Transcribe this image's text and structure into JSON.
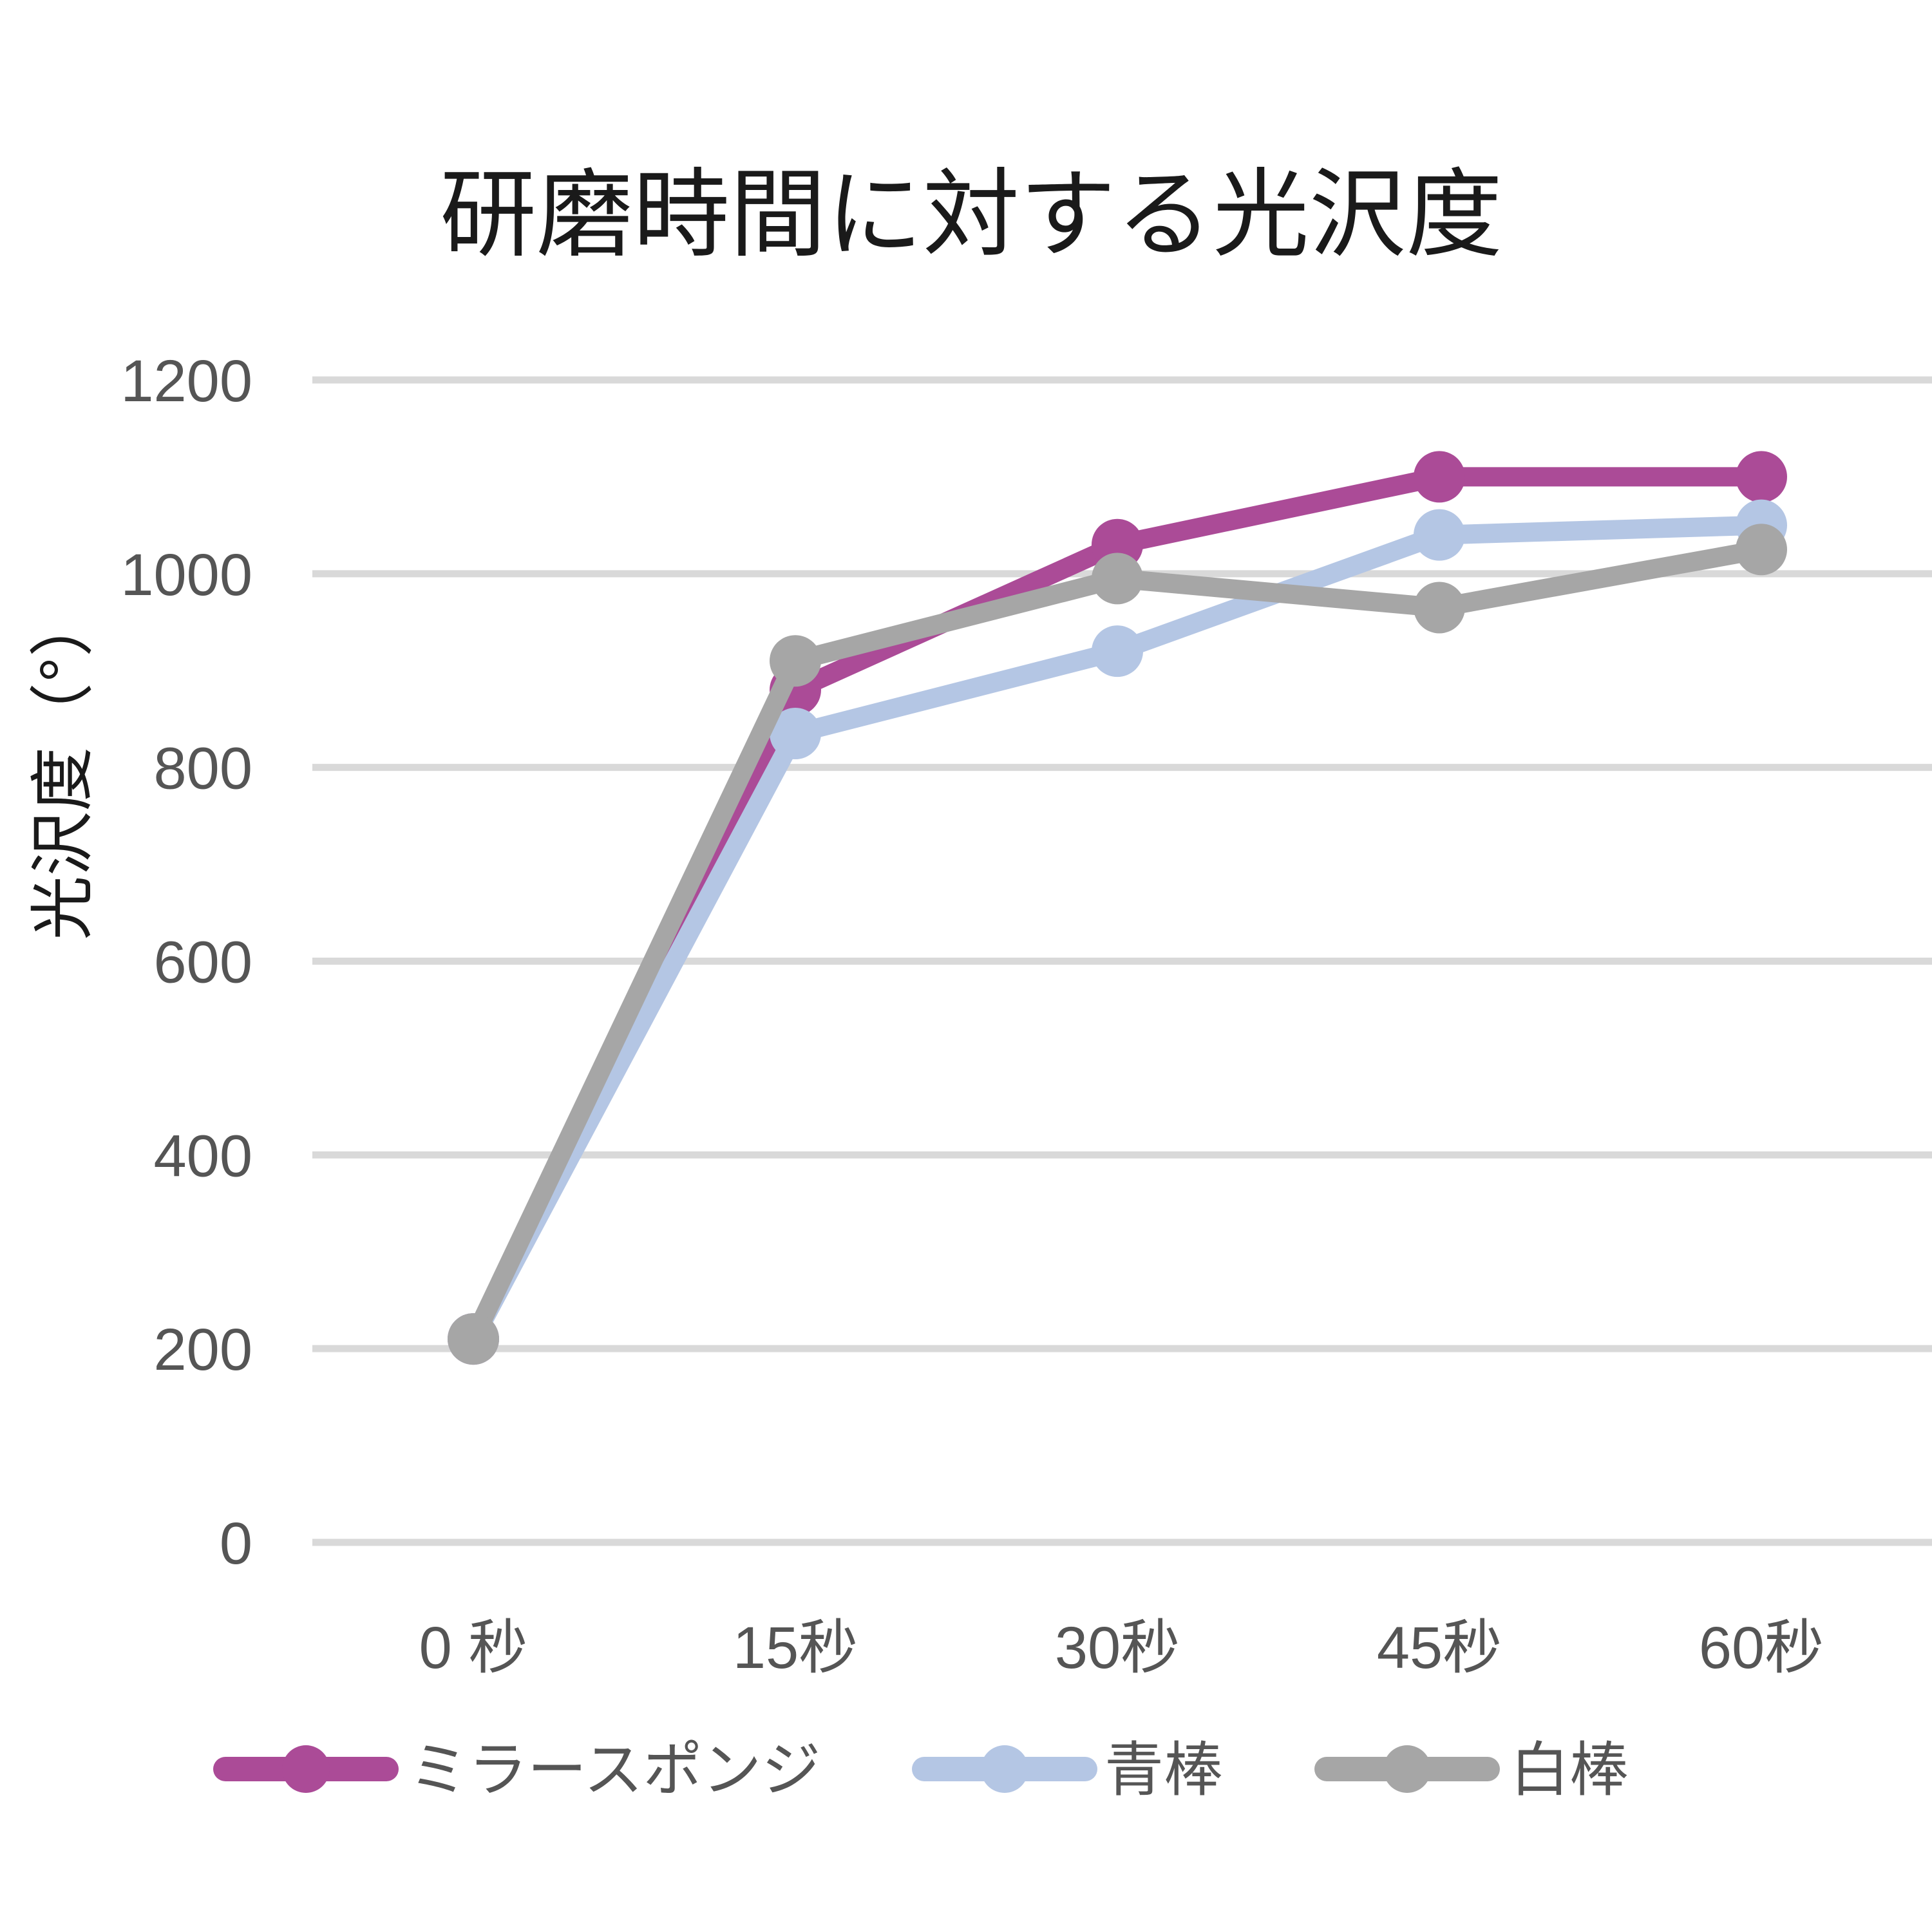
{
  "chart_data": {
    "type": "line",
    "title": "研磨時間に対する光沢度",
    "xlabel": "",
    "ylabel": "光沢度（°）",
    "categories": [
      "0 秒",
      "15秒",
      "30秒",
      "45秒",
      "60秒"
    ],
    "ylim": [
      0,
      1200
    ],
    "yticks": [
      0,
      200,
      400,
      600,
      800,
      1000,
      1200
    ],
    "grid": true,
    "legend_position": "bottom",
    "series": [
      {
        "name": "ミラースポンジ",
        "color": "#ab4b97",
        "values": [
          210,
          880,
          1030,
          1100,
          1100
        ]
      },
      {
        "name": "青棒",
        "color": "#b4c6e4",
        "values": [
          210,
          835,
          920,
          1040,
          1050
        ]
      },
      {
        "name": "白棒",
        "color": "#a6a6a6",
        "values": [
          210,
          910,
          995,
          965,
          1025
        ]
      }
    ]
  }
}
